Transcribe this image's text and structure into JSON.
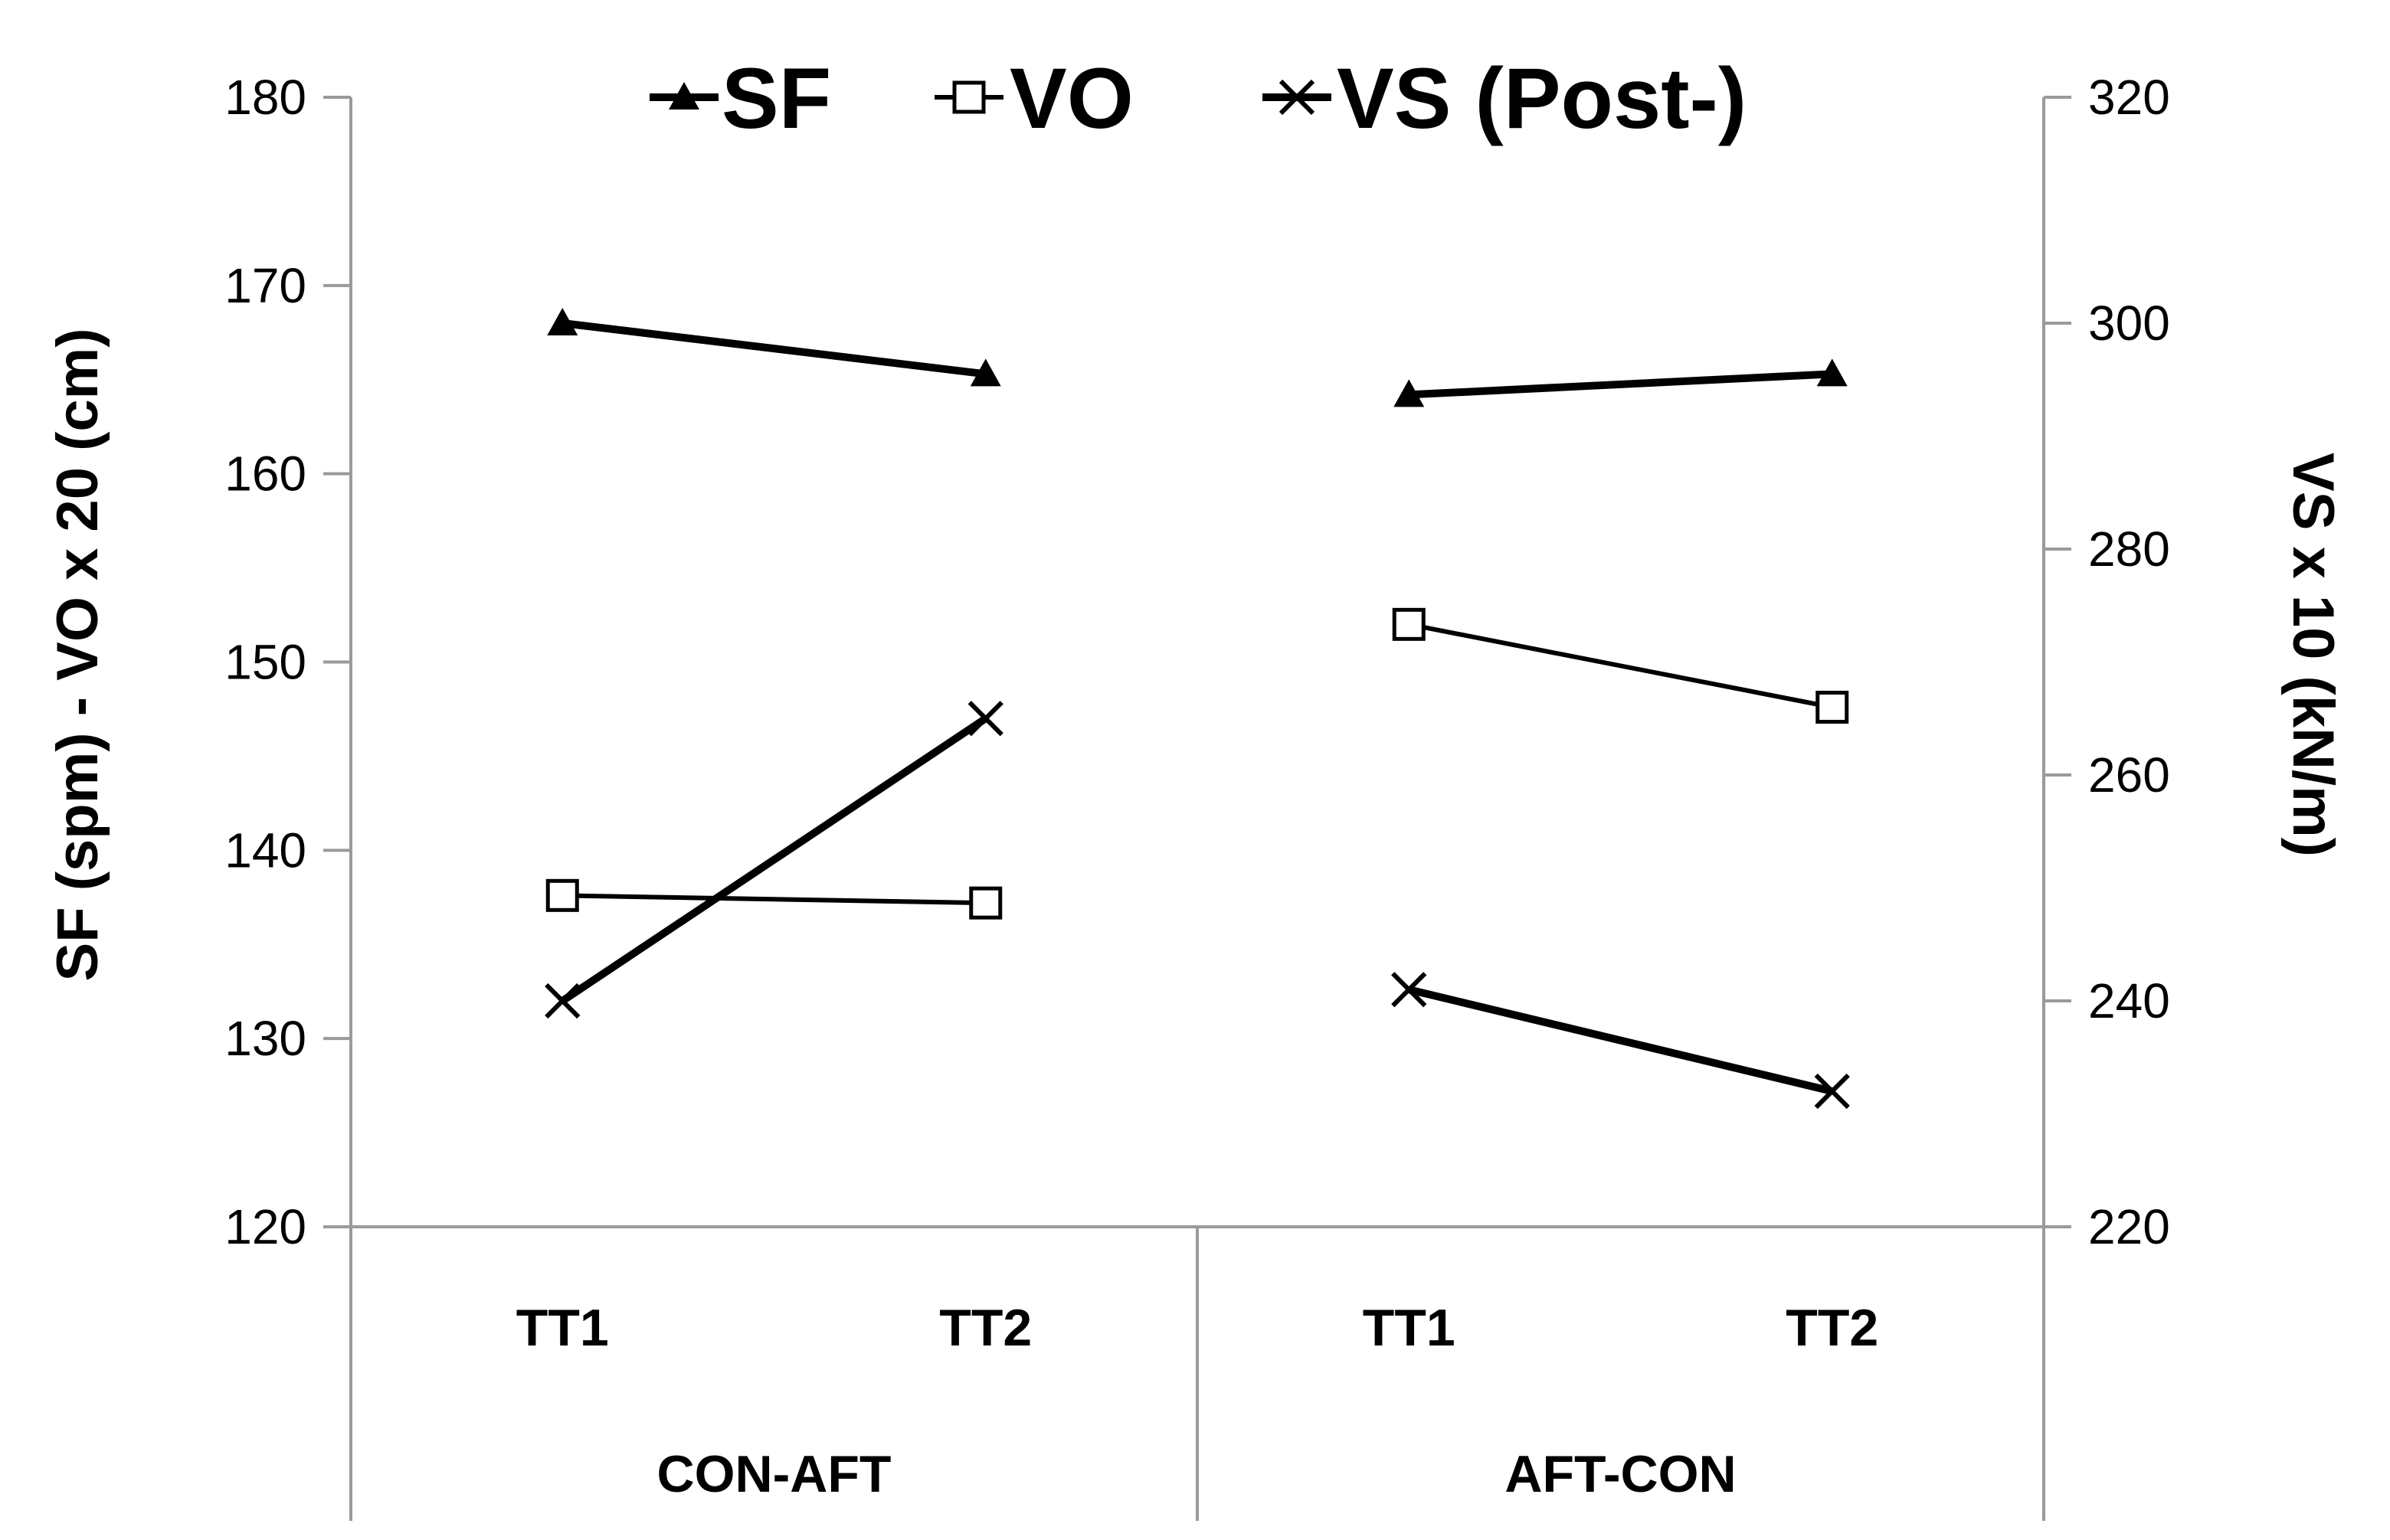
{
  "chart_data": {
    "type": "line",
    "title": "",
    "groups": [
      {
        "label": "CON-AFT",
        "categories": [
          "TT1",
          "TT2"
        ]
      },
      {
        "label": "AFT-CON",
        "categories": [
          "TT1",
          "TT2"
        ]
      }
    ],
    "y_left": {
      "label": "SF (spm) - VO x 20 (cm)",
      "range": [
        120,
        180
      ],
      "ticks": [
        "120",
        "130",
        "140",
        "150",
        "160",
        "170",
        "180"
      ]
    },
    "y_right": {
      "label": "VS x 10 (kN/m)",
      "range": [
        220,
        320
      ],
      "ticks": [
        "220",
        "240",
        "260",
        "280",
        "300",
        "320"
      ]
    },
    "legend_position": "top-center",
    "grid": false,
    "series": [
      {
        "name": "SF",
        "marker": "triangle-filled",
        "axis": "left",
        "values": [
          [
            168.0,
            165.3
          ],
          [
            164.2,
            165.3
          ]
        ]
      },
      {
        "name": "VO",
        "marker": "square-open",
        "axis": "left",
        "values": [
          [
            137.6,
            137.2
          ],
          [
            152.0,
            147.6
          ]
        ]
      },
      {
        "name": "VS (Post-)",
        "marker": "x",
        "axis": "right",
        "values": [
          [
            240.0,
            265.0
          ],
          [
            241.0,
            232.0
          ]
        ]
      }
    ]
  }
}
